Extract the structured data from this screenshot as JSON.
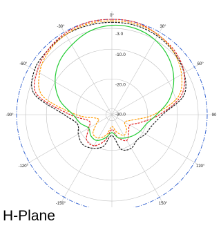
{
  "caption": "H-Plane",
  "chart_data": {
    "type": "polar-line",
    "title": "",
    "angle_labels": [
      "0°",
      "30°",
      "60°",
      "90",
      "120°",
      "150°",
      "180°",
      "-150°",
      "-120°",
      "-90°",
      "-60°",
      "-30°"
    ],
    "radial_labels": [
      "-3.0",
      "-10.0",
      "-20.0",
      "-30.0"
    ],
    "radial_values": [
      -3,
      -10,
      -20,
      -30
    ],
    "angles_deg": [
      0,
      15,
      30,
      45,
      60,
      75,
      90,
      105,
      120,
      135,
      150,
      165,
      180,
      195,
      210,
      225,
      240,
      255,
      270,
      285,
      300,
      315,
      330,
      345
    ],
    "series": [
      {
        "color": "#1a1a1a",
        "style": "dashed",
        "values": [
          -1,
          -1,
          -1.5,
          -2.5,
          -4,
          -7,
          -15,
          -18,
          -19,
          -20,
          -19,
          -20,
          -25,
          -21,
          -19,
          -18,
          -19,
          -20,
          -16,
          -5,
          -2,
          -1.5,
          -1,
          -1
        ]
      },
      {
        "color": "#e02020",
        "style": "dashed",
        "values": [
          0,
          0,
          -1,
          -2,
          -4,
          -8,
          -16,
          -22,
          -25,
          -24,
          -22,
          -24,
          -27,
          -23,
          -20,
          -20,
          -23,
          -24,
          -18,
          -6,
          -3,
          -1.5,
          -0.5,
          0
        ]
      },
      {
        "color": "#ff9900",
        "style": "dashed",
        "values": [
          -0.5,
          -0.5,
          -1,
          -2.5,
          -5,
          -9,
          -18,
          -25,
          -27,
          -25,
          -24,
          -26,
          -28,
          -25,
          -23,
          -23,
          -26,
          -27,
          -20,
          -8,
          -4,
          -2,
          -1,
          -0.5
        ]
      },
      {
        "color": "#22cc33",
        "style": "solid",
        "values": [
          -2,
          -2,
          -3,
          -5,
          -8,
          -12,
          -17,
          -20,
          -21,
          -22,
          -23,
          -24,
          -26,
          -24,
          -22,
          -22,
          -23,
          -21,
          -19,
          -14,
          -10,
          -7,
          -5,
          -3
        ]
      }
    ],
    "reference_ring": {
      "color": "#2255cc",
      "style": "dashdot"
    },
    "grid": true
  }
}
